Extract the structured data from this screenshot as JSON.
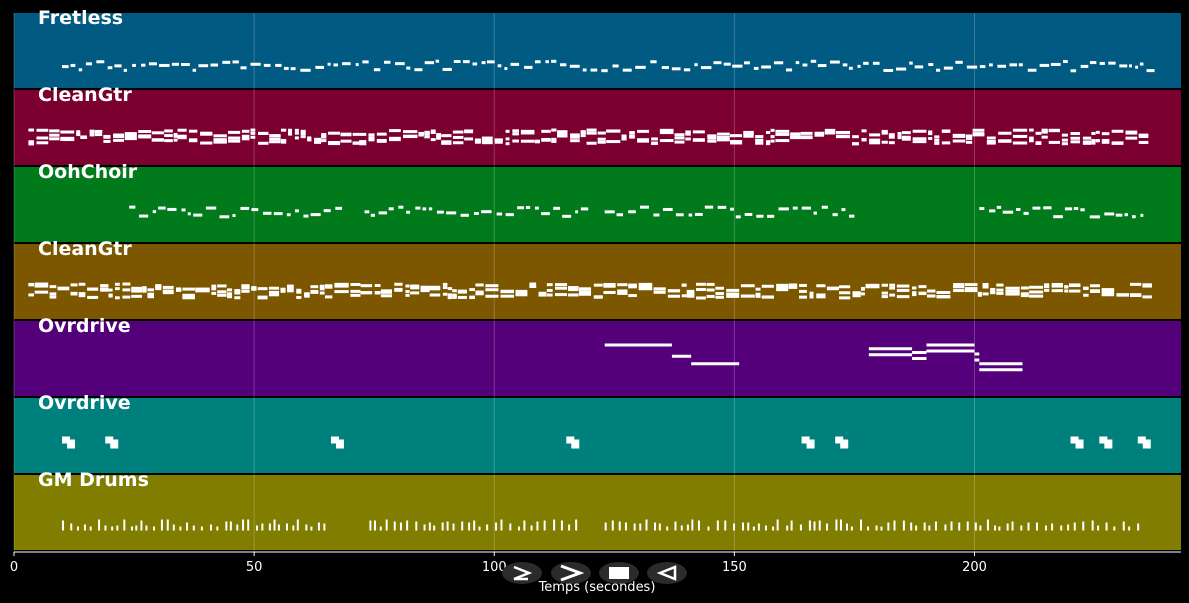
{
  "chart_data": {
    "type": "piano-roll",
    "xlabel": "Temps (secondes)",
    "xlim": [
      0,
      243
    ],
    "xticks": [
      0,
      50,
      100,
      150,
      200
    ],
    "grid": true,
    "tracks": [
      {
        "name": "Fretless",
        "color": "#005A82",
        "density": "sparse-melody",
        "segments": [
          [
            10,
            238
          ]
        ],
        "note_style": "thin"
      },
      {
        "name": "CleanGtr",
        "color": "#7B0030",
        "density": "dense-chords",
        "segments": [
          [
            3,
            236
          ]
        ],
        "note_style": "block"
      },
      {
        "name": "OohChoir",
        "color": "#007A1A",
        "density": "sparse-melody",
        "segments": [
          [
            24,
            69
          ],
          [
            73,
            119
          ],
          [
            123,
            174
          ],
          [
            201,
            235
          ]
        ],
        "note_style": "thin"
      },
      {
        "name": "CleanGtr",
        "color": "#7D5600",
        "density": "dense-chords",
        "segments": [
          [
            3,
            237
          ]
        ],
        "note_style": "block"
      },
      {
        "name": "Ovrdrive",
        "color": "#54007A",
        "density": "long-notes",
        "notes": [
          [
            123,
            137,
            0.3
          ],
          [
            137,
            141,
            0.45
          ],
          [
            141,
            151,
            0.55
          ],
          [
            178,
            187,
            0.35
          ],
          [
            187,
            190,
            0.4
          ],
          [
            190,
            200,
            0.3
          ],
          [
            200,
            201,
            0.42
          ],
          [
            201,
            210,
            0.55
          ]
        ],
        "note_style": "outline"
      },
      {
        "name": "Ovrdrive",
        "color": "#00807C",
        "density": "clusters",
        "clusters": [
          10,
          19,
          66,
          115,
          164,
          171,
          220,
          226,
          234
        ],
        "note_style": "block"
      },
      {
        "name": "GM Drums",
        "color": "#807D00",
        "density": "percussion",
        "segments": [
          [
            10,
            66
          ],
          [
            74,
            118
          ],
          [
            123,
            234
          ]
        ],
        "note_style": "tick"
      }
    ]
  },
  "transport": {
    "buttons": [
      {
        "name": "play-button",
        "icon": "play-icon"
      },
      {
        "name": "fast-forward-button",
        "icon": "fast-forward-icon"
      },
      {
        "name": "stop-button",
        "icon": "stop-icon"
      },
      {
        "name": "rewind-button",
        "icon": "rewind-icon"
      }
    ]
  }
}
